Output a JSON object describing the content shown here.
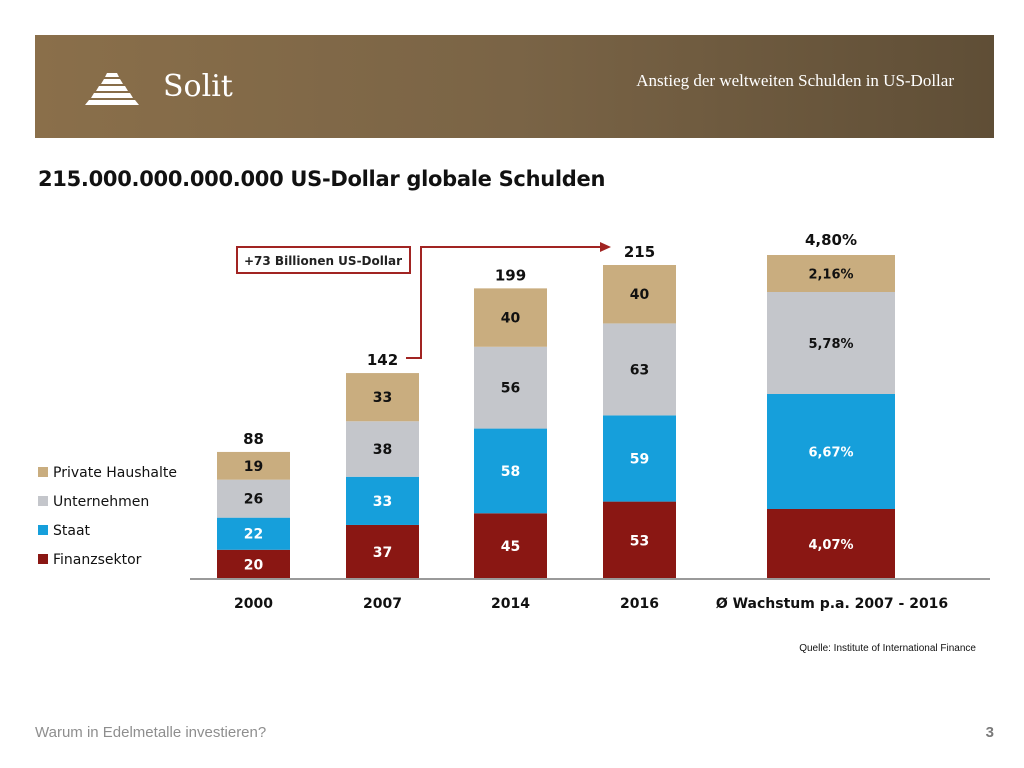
{
  "header": {
    "brand": "Solit",
    "title": "Anstieg der weltweiten Schulden in US-Dollar"
  },
  "page_title": "215.000.000.000.000 US-Dollar globale Schulden",
  "annotation": "+73 Billionen US-Dollar",
  "source": "Quelle: Institute of International Finance",
  "footer": {
    "text": "Warum in Edelmetalle investieren?",
    "page": "3"
  },
  "colors": {
    "header_bg": "#7a6446",
    "private": "#c9ad7f",
    "unternehmen": "#c4c6cb",
    "staat": "#169fdb",
    "finanz": "#8a1713",
    "annotation": "#a12422"
  },
  "chart_data": {
    "type": "bar",
    "stacked": true,
    "categories": [
      "2000",
      "2007",
      "2014",
      "2016"
    ],
    "series": [
      {
        "name": "Finanzsektor",
        "values": [
          20,
          37,
          45,
          53
        ],
        "color": "#8a1713"
      },
      {
        "name": "Staat",
        "values": [
          22,
          33,
          58,
          59
        ],
        "color": "#169fdb"
      },
      {
        "name": "Unternehmen",
        "values": [
          26,
          38,
          56,
          63
        ],
        "color": "#c4c6cb"
      },
      {
        "name": "Private Haushalte",
        "values": [
          19,
          33,
          40,
          40
        ],
        "color": "#c9ad7f"
      }
    ],
    "totals": [
      "88",
      "142",
      "199",
      "215"
    ],
    "legend": [
      "Private Haushalte",
      "Unternehmen",
      "Staat",
      "Finanzsektor"
    ],
    "legend_position": "left",
    "growth": {
      "category": "Ø Wachstum p.a. 2007 - 2016",
      "total_label": "4,80%",
      "values": [
        4.07,
        6.67,
        5.78,
        2.16
      ],
      "labels": [
        "4,07%",
        "6,67%",
        "5,78%",
        "2,16%"
      ]
    },
    "xlabel": "",
    "ylabel": "",
    "ylim": [
      0,
      215
    ]
  }
}
